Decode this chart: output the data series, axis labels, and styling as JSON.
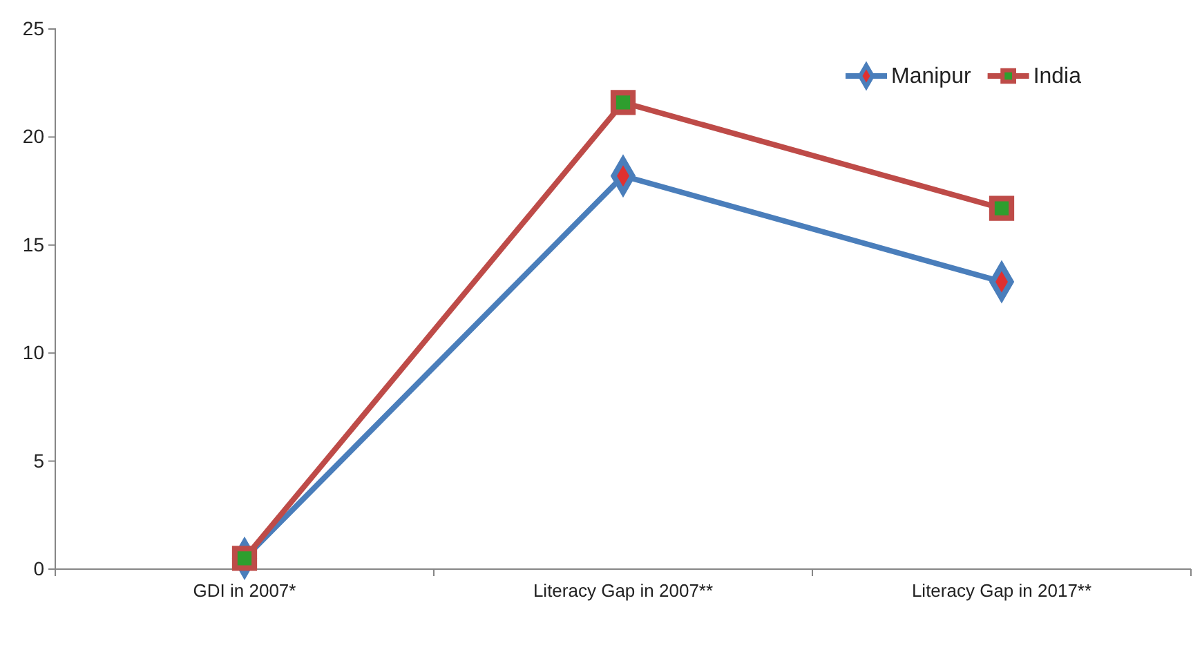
{
  "chart_data": {
    "type": "line",
    "categories": [
      "GDI in 2007*",
      "Literacy Gap in 2007**",
      "Literacy Gap in 2017**"
    ],
    "series": [
      {
        "name": "Manipur",
        "color": "#4a7ebb",
        "marker": "diamond",
        "values": [
          0.5,
          18.2,
          13.3
        ]
      },
      {
        "name": "India",
        "color": "#be4b48",
        "marker": "square",
        "values": [
          0.5,
          21.6,
          16.7
        ]
      }
    ],
    "ylim": [
      0,
      25
    ],
    "yticks": [
      0,
      5,
      10,
      15,
      20,
      25
    ],
    "grid": false,
    "legend": "top right",
    "line_style": "solid"
  }
}
